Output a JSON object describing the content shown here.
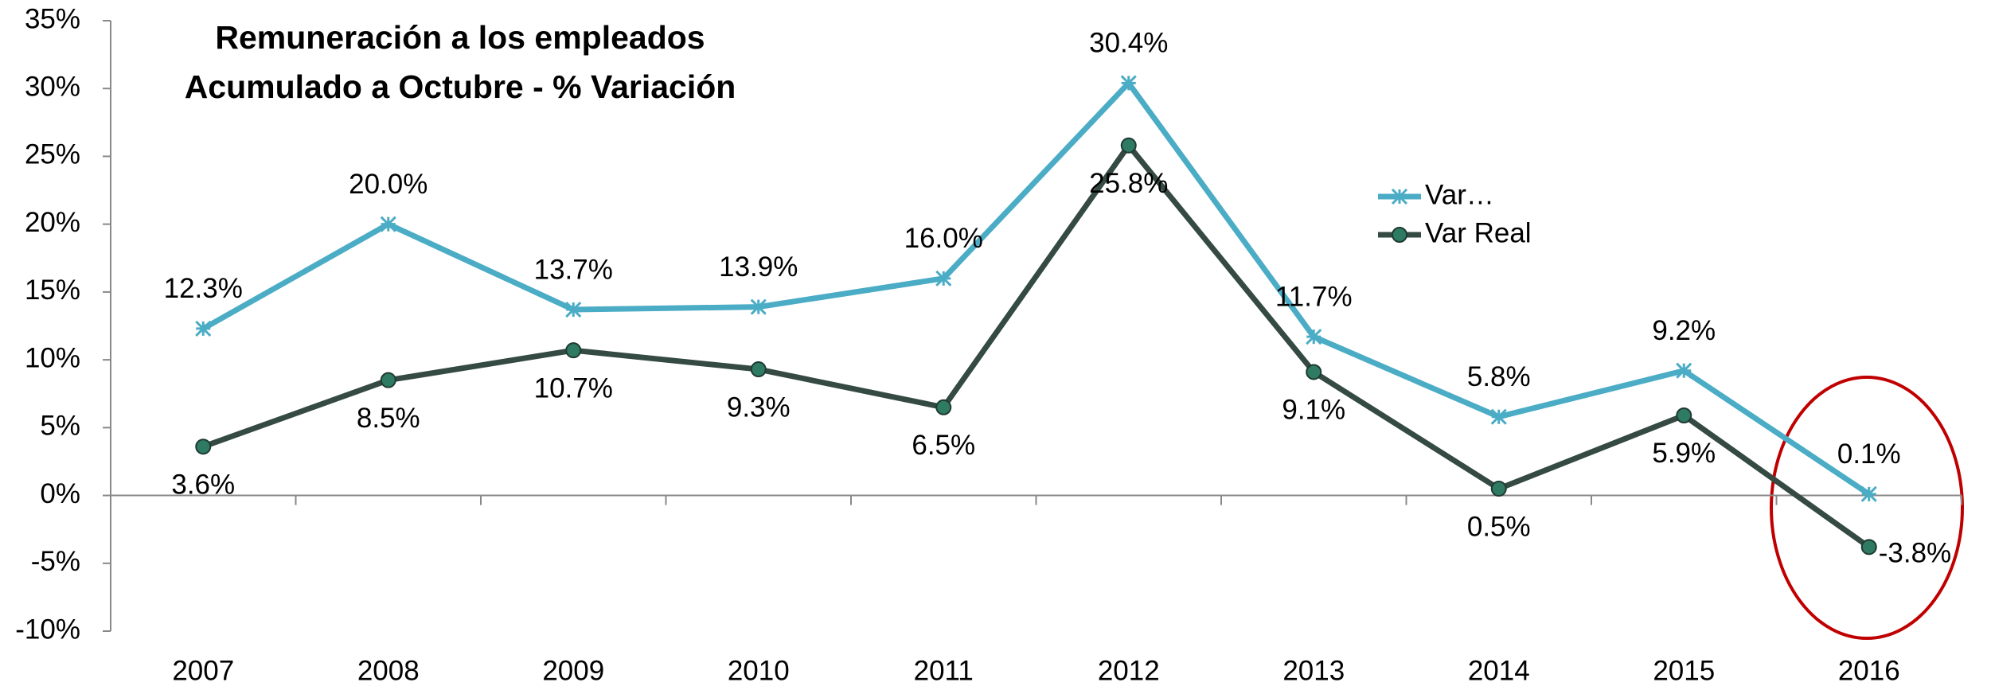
{
  "chart_data": {
    "type": "line",
    "title": "Remuneración a los empleados",
    "subtitle": "Acumulado a Octubre - % Variación",
    "categories": [
      "2007",
      "2008",
      "2009",
      "2010",
      "2011",
      "2012",
      "2013",
      "2014",
      "2015",
      "2016"
    ],
    "series": [
      {
        "name": "Var…",
        "color": "#4bacc6",
        "marker": "asterisk",
        "values": [
          12.3,
          20.0,
          13.7,
          13.9,
          16.0,
          30.4,
          11.7,
          5.8,
          9.2,
          0.1
        ],
        "value_labels": [
          "12.3%",
          "20.0%",
          "13.7%",
          "13.9%",
          "16.0%",
          "30.4%",
          "11.7%",
          "5.8%",
          "9.2%",
          "0.1%"
        ]
      },
      {
        "name": "Var Real",
        "color": "#344a42",
        "marker": "circle",
        "values": [
          3.6,
          8.5,
          10.7,
          9.3,
          6.5,
          25.8,
          9.1,
          0.5,
          5.9,
          -3.8
        ],
        "value_labels": [
          "3.6%",
          "8.5%",
          "10.7%",
          "9.3%",
          "6.5%",
          "25.8%",
          "9.1%",
          "0.5%",
          "5.9%",
          "-3.8%"
        ]
      }
    ],
    "ylim": [
      -10,
      35
    ],
    "yticks": [
      {
        "value": -10,
        "label": "-10%"
      },
      {
        "value": -5,
        "label": "-5%"
      },
      {
        "value": 0,
        "label": "0%"
      },
      {
        "value": 5,
        "label": "5%"
      },
      {
        "value": 10,
        "label": "10%"
      },
      {
        "value": 15,
        "label": "15%"
      },
      {
        "value": 20,
        "label": "20%"
      },
      {
        "value": 25,
        "label": "25%"
      },
      {
        "value": 30,
        "label": "30%"
      },
      {
        "value": 35,
        "label": "35%"
      }
    ],
    "grid": false
  }
}
